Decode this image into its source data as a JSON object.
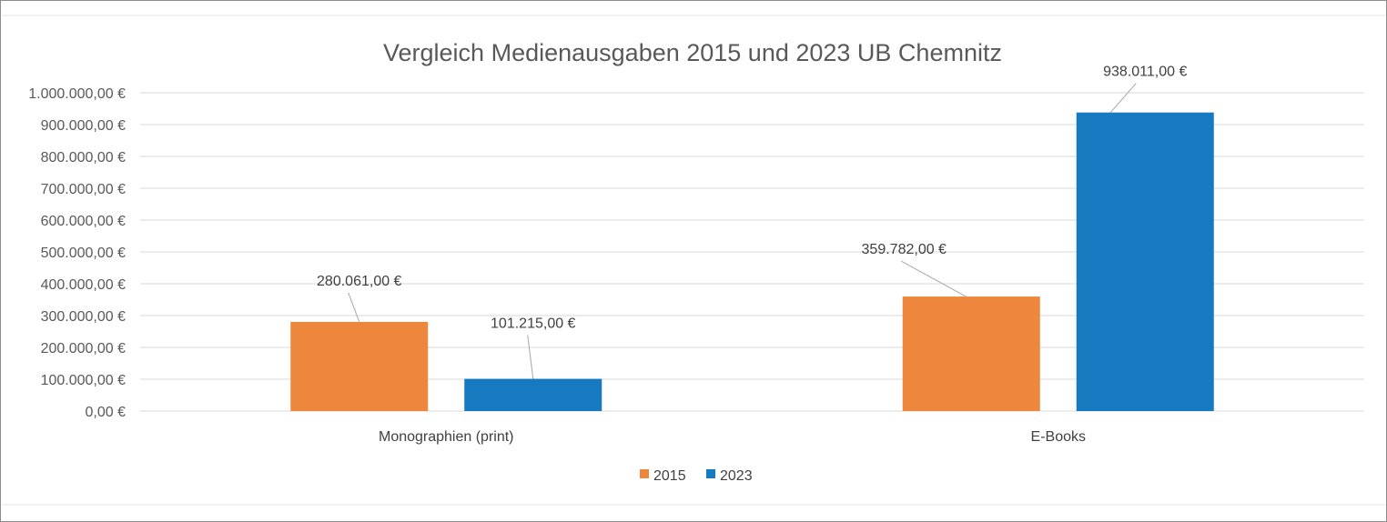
{
  "chart_data": {
    "type": "bar",
    "title": "Vergleich Medienausgaben 2015 und 2023 UB Chemnitz",
    "xlabel": "",
    "ylabel": "",
    "categories": [
      "Monographien (print)",
      "E-Books"
    ],
    "series": [
      {
        "name": "2015",
        "color": "#ED873D",
        "values": [
          280061,
          359782
        ],
        "labels": [
          "280.061,00 €",
          "359.782,00 €"
        ]
      },
      {
        "name": "2023",
        "color": "#1779BF",
        "values": [
          101215,
          938011
        ],
        "labels": [
          "101.215,00 €",
          "938.011,00 €"
        ]
      }
    ],
    "ylim": [
      0,
      1000000
    ],
    "yticks": [
      0,
      100000,
      200000,
      300000,
      400000,
      500000,
      600000,
      700000,
      800000,
      900000,
      1000000
    ],
    "ytick_labels": [
      "0,00 €",
      "100.000,00 €",
      "200.000,00 €",
      "300.000,00 €",
      "400.000,00 €",
      "500.000,00 €",
      "600.000,00 €",
      "700.000,00 €",
      "800.000,00 €",
      "900.000,00 €",
      "1.000.000,00 €"
    ],
    "grid": true,
    "legend": "bottom",
    "gridline_color": "#D9D9D9",
    "leader_line_color": "#A6A6A6"
  }
}
